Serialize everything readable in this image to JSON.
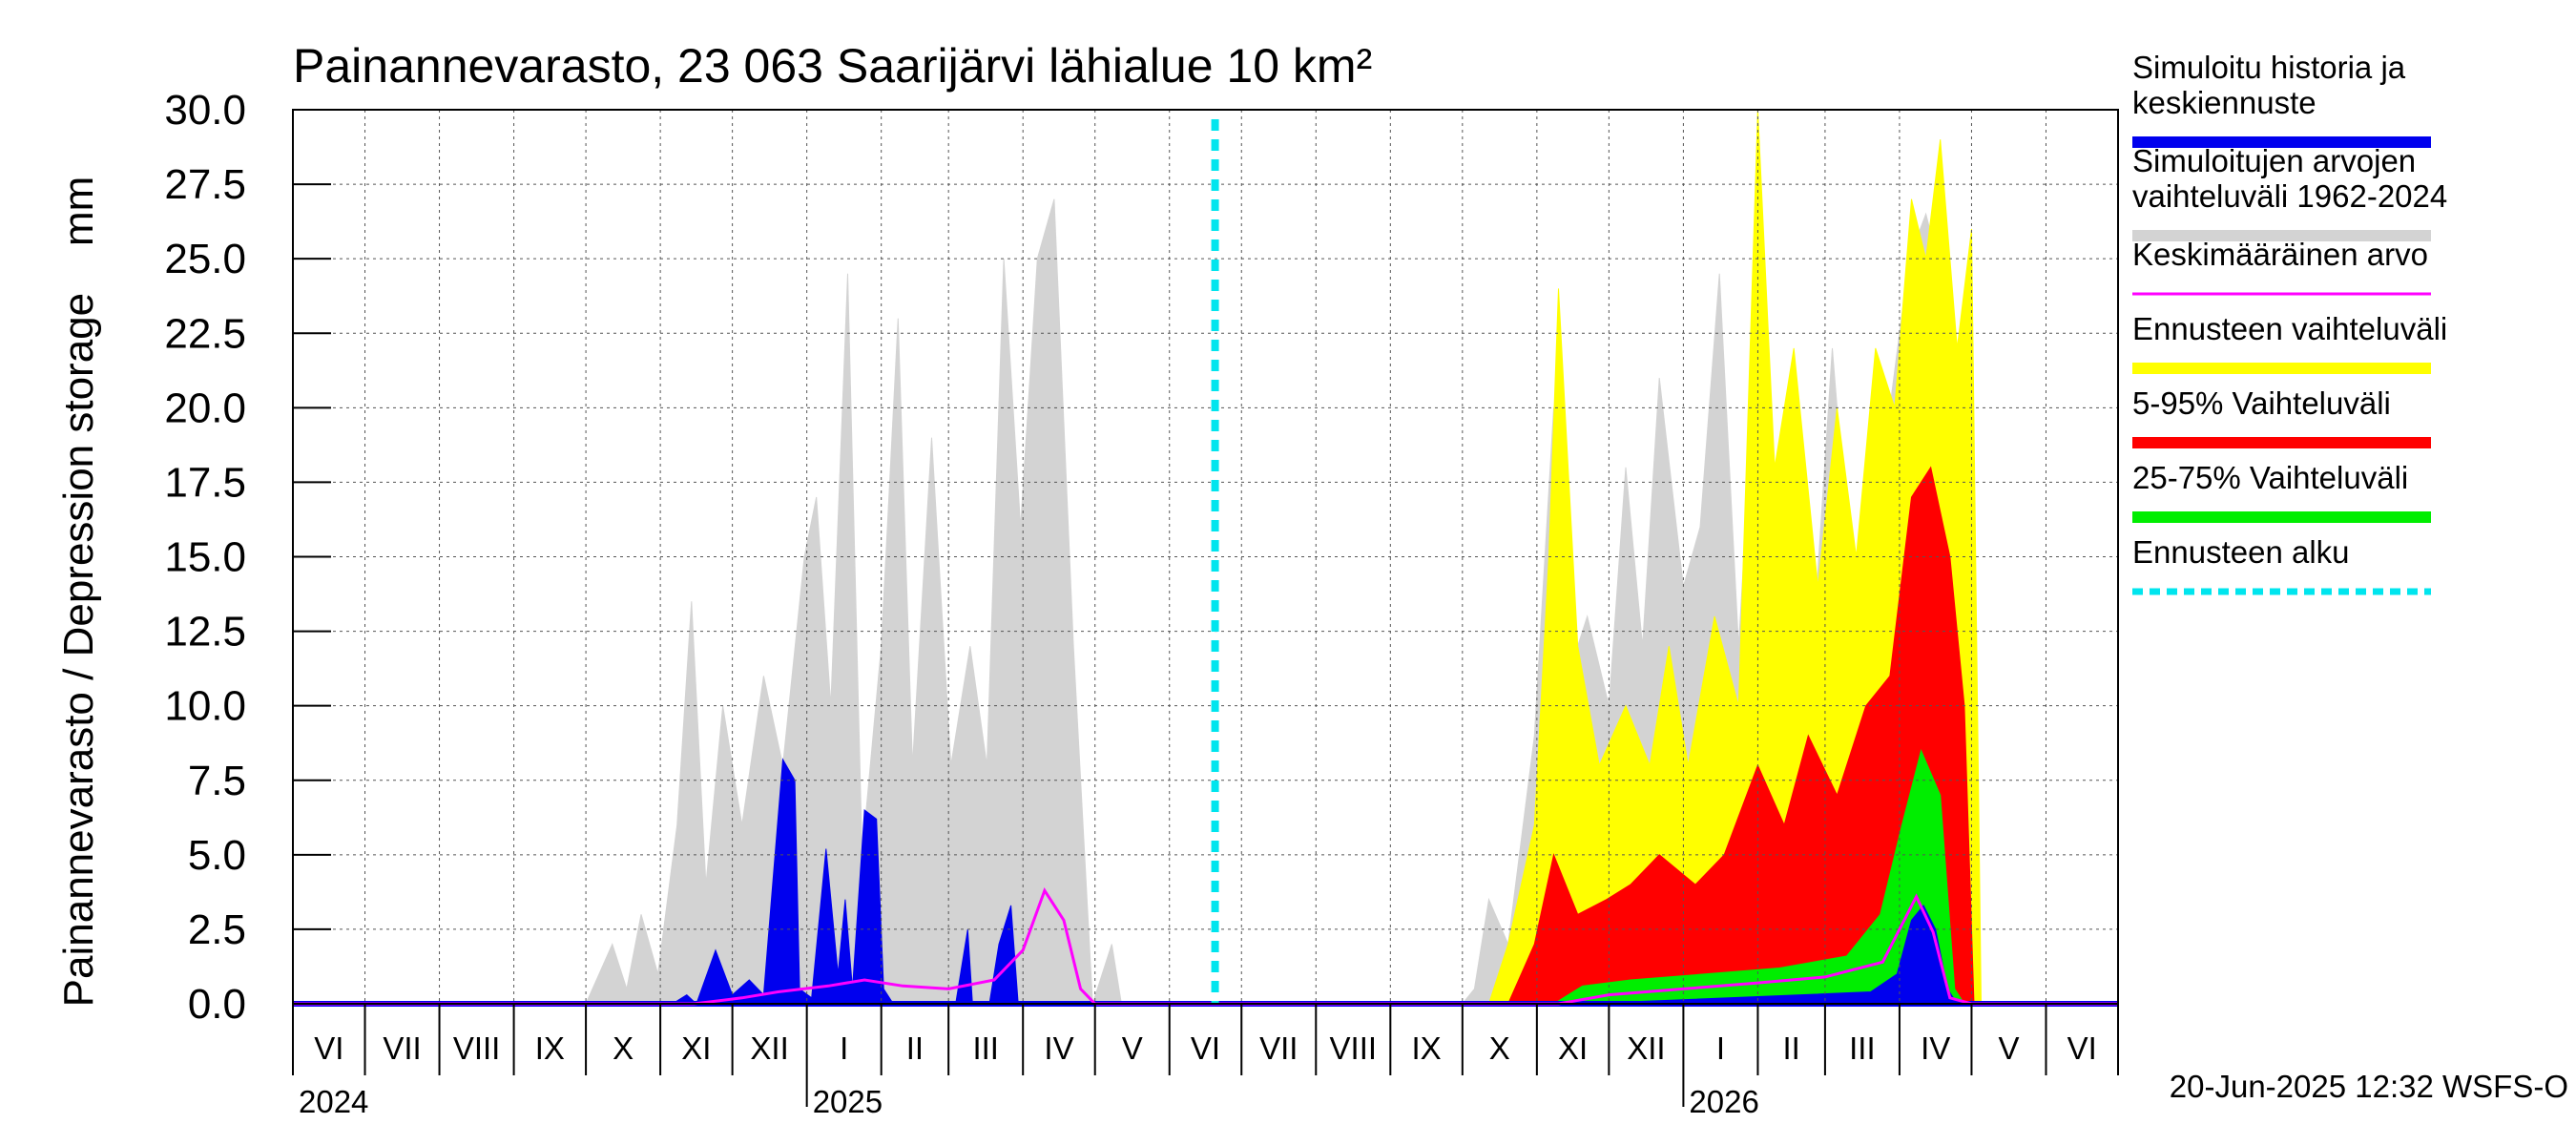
{
  "chart_data": {
    "type": "area",
    "title": "Painannevarasto, 23 063 Saarijärvi lähialue 10 km²",
    "ylabel": "Painannevarasto / Depression storage    mm",
    "ylim": [
      0,
      30
    ],
    "yticks": [
      "0.0",
      "2.5",
      "5.0",
      "7.5",
      "10.0",
      "12.5",
      "15.0",
      "17.5",
      "20.0",
      "22.5",
      "25.0",
      "27.5",
      "30.0"
    ],
    "grid": true,
    "legend_position": "right",
    "x_start": "2024-06-01",
    "x_end": "2026-07-01",
    "month_labels": [
      "VI",
      "VII",
      "VIII",
      "IX",
      "X",
      "XI",
      "XII",
      "I",
      "II",
      "III",
      "IV",
      "V",
      "VI",
      "VII",
      "VIII",
      "IX",
      "X",
      "XI",
      "XII",
      "I",
      "II",
      "III",
      "IV",
      "V",
      "VI"
    ],
    "year_labels": [
      "2024",
      "2025",
      "2026"
    ],
    "forecast_start": "2025-06-20",
    "footer": "20-Jun-2025 12:32 WSFS-O",
    "colors": {
      "history": "#0000ee",
      "range_1962_2024": "#d3d3d3",
      "mean": "#ff00ff",
      "forecast_range": "#ffff00",
      "p5_95": "#ff0000",
      "p25_75": "#00ee00",
      "forecast_start": "#00e5ee"
    },
    "legend": [
      {
        "key": "history",
        "lines": [
          "Simuloitu historia ja",
          "keskiennuste"
        ],
        "style": "thick"
      },
      {
        "key": "range_1962_2024",
        "lines": [
          "Simuloitujen arvojen",
          "vaihteluväli 1962-2024"
        ],
        "style": "thick"
      },
      {
        "key": "mean",
        "lines": [
          "Keskimääräinen arvo"
        ],
        "style": "thin"
      },
      {
        "key": "forecast_range",
        "lines": [
          "Ennusteen vaihteluväli"
        ],
        "style": "thick"
      },
      {
        "key": "p5_95",
        "lines": [
          "5-95% Vaihteluväli"
        ],
        "style": "thick"
      },
      {
        "key": "p25_75",
        "lines": [
          "25-75% Vaihteluväli"
        ],
        "style": "thick"
      },
      {
        "key": "forecast_start",
        "lines": [
          "Ennusteen alku"
        ],
        "style": "dotted"
      }
    ],
    "series": [
      {
        "key": "range_1962_2024",
        "name": "Simuloitujen arvojen vaihteluväli 1962-2024",
        "type": "area",
        "points": [
          [
            "2024-10-01",
            0
          ],
          [
            "2024-10-12",
            2
          ],
          [
            "2024-10-18",
            0.5
          ],
          [
            "2024-10-24",
            3
          ],
          [
            "2024-10-31",
            1
          ],
          [
            "2024-11-08",
            6
          ],
          [
            "2024-11-14",
            13.5
          ],
          [
            "2024-11-20",
            4
          ],
          [
            "2024-11-27",
            10
          ],
          [
            "2024-12-05",
            6
          ],
          [
            "2024-12-14",
            11
          ],
          [
            "2024-12-22",
            8
          ],
          [
            "2024-12-31",
            15
          ],
          [
            "2025-01-05",
            17
          ],
          [
            "2025-01-11",
            10
          ],
          [
            "2025-01-18",
            24.5
          ],
          [
            "2025-01-24",
            5
          ],
          [
            "2025-02-01",
            12
          ],
          [
            "2025-02-08",
            23
          ],
          [
            "2025-02-14",
            8
          ],
          [
            "2025-02-22",
            19
          ],
          [
            "2025-03-02",
            8
          ],
          [
            "2025-03-10",
            12
          ],
          [
            "2025-03-17",
            8
          ],
          [
            "2025-03-24",
            25
          ],
          [
            "2025-03-31",
            16
          ],
          [
            "2025-04-07",
            25
          ],
          [
            "2025-04-14",
            27
          ],
          [
            "2025-04-22",
            12
          ],
          [
            "2025-04-30",
            0
          ],
          [
            "2025-05-08",
            2
          ],
          [
            "2025-05-12",
            0
          ],
          [
            "2025-10-01",
            0
          ],
          [
            "2025-10-06",
            0.5
          ],
          [
            "2025-10-12",
            3.5
          ],
          [
            "2025-10-20",
            2
          ],
          [
            "2025-10-31",
            9
          ],
          [
            "2025-11-08",
            20
          ],
          [
            "2025-11-14",
            11
          ],
          [
            "2025-11-22",
            13
          ],
          [
            "2025-12-01",
            10
          ],
          [
            "2025-12-08",
            18
          ],
          [
            "2025-12-15",
            12
          ],
          [
            "2025-12-22",
            21
          ],
          [
            "2026-01-01",
            14
          ],
          [
            "2026-01-08",
            16
          ],
          [
            "2026-01-16",
            24.5
          ],
          [
            "2026-01-24",
            12
          ],
          [
            "2026-02-01",
            23
          ],
          [
            "2026-02-09",
            16
          ],
          [
            "2026-02-16",
            20
          ],
          [
            "2026-02-24",
            12
          ],
          [
            "2026-03-04",
            22
          ],
          [
            "2026-03-12",
            14
          ],
          [
            "2026-03-20",
            18
          ],
          [
            "2026-03-28",
            20
          ],
          [
            "2026-04-05",
            25
          ],
          [
            "2026-04-12",
            26.5
          ],
          [
            "2026-04-20",
            24
          ],
          [
            "2026-04-28",
            12
          ],
          [
            "2026-05-02",
            0
          ]
        ]
      },
      {
        "key": "forecast_range",
        "name": "Ennusteen vaihteluväli",
        "type": "area",
        "points": [
          [
            "2025-10-12",
            0
          ],
          [
            "2025-10-20",
            2
          ],
          [
            "2025-10-31",
            6
          ],
          [
            "2025-11-06",
            15
          ],
          [
            "2025-11-10",
            24
          ],
          [
            "2025-11-18",
            12
          ],
          [
            "2025-11-27",
            8
          ],
          [
            "2025-12-08",
            10
          ],
          [
            "2025-12-18",
            8
          ],
          [
            "2025-12-26",
            12
          ],
          [
            "2026-01-03",
            8
          ],
          [
            "2026-01-14",
            13
          ],
          [
            "2026-01-24",
            10
          ],
          [
            "2026-02-01",
            30
          ],
          [
            "2026-02-08",
            18
          ],
          [
            "2026-02-16",
            22
          ],
          [
            "2026-02-26",
            14
          ],
          [
            "2026-03-06",
            20
          ],
          [
            "2026-03-14",
            15
          ],
          [
            "2026-03-22",
            22
          ],
          [
            "2026-03-30",
            20
          ],
          [
            "2026-04-06",
            27
          ],
          [
            "2026-04-12",
            25
          ],
          [
            "2026-04-18",
            29
          ],
          [
            "2026-04-25",
            22
          ],
          [
            "2026-05-01",
            26
          ],
          [
            "2026-05-05",
            0
          ]
        ]
      },
      {
        "key": "p5_95",
        "name": "5-95% Vaihteluväli",
        "type": "area",
        "points": [
          [
            "2025-10-20",
            0
          ],
          [
            "2025-10-31",
            2
          ],
          [
            "2025-11-08",
            5
          ],
          [
            "2025-11-18",
            3
          ],
          [
            "2025-11-30",
            3.5
          ],
          [
            "2025-12-10",
            4
          ],
          [
            "2025-12-22",
            5
          ],
          [
            "2026-01-06",
            4
          ],
          [
            "2026-01-18",
            5
          ],
          [
            "2026-02-01",
            8
          ],
          [
            "2026-02-12",
            6
          ],
          [
            "2026-02-22",
            9
          ],
          [
            "2026-03-06",
            7
          ],
          [
            "2026-03-18",
            10
          ],
          [
            "2026-03-28",
            11
          ],
          [
            "2026-04-06",
            17
          ],
          [
            "2026-04-14",
            18
          ],
          [
            "2026-04-22",
            15
          ],
          [
            "2026-04-28",
            10
          ],
          [
            "2026-05-02",
            0
          ]
        ]
      },
      {
        "key": "p25_75",
        "name": "25-75% Vaihteluväli",
        "type": "area",
        "points": [
          [
            "2025-11-08",
            0
          ],
          [
            "2025-11-20",
            0.6
          ],
          [
            "2025-12-10",
            0.8
          ],
          [
            "2026-01-10",
            1
          ],
          [
            "2026-02-10",
            1.2
          ],
          [
            "2026-03-10",
            1.6
          ],
          [
            "2026-03-24",
            3
          ],
          [
            "2026-04-02",
            6
          ],
          [
            "2026-04-10",
            8.5
          ],
          [
            "2026-04-18",
            7
          ],
          [
            "2026-04-24",
            0.5
          ],
          [
            "2026-04-28",
            0
          ]
        ]
      },
      {
        "key": "history",
        "name": "Simuloitu historia ja keskiennuste",
        "type": "area",
        "points": [
          [
            "2024-11-06",
            0
          ],
          [
            "2024-11-12",
            0.3
          ],
          [
            "2024-11-16",
            0
          ],
          [
            "2024-11-24",
            1.8
          ],
          [
            "2024-12-01",
            0.3
          ],
          [
            "2024-12-08",
            0.8
          ],
          [
            "2024-12-14",
            0.3
          ],
          [
            "2024-12-22",
            8.2
          ],
          [
            "2024-12-27",
            7.5
          ],
          [
            "2024-12-29",
            0.5
          ],
          [
            "2025-01-03",
            0.2
          ],
          [
            "2025-01-09",
            5.2
          ],
          [
            "2025-01-14",
            1
          ],
          [
            "2025-01-17",
            3.5
          ],
          [
            "2025-01-20",
            0.5
          ],
          [
            "2025-01-25",
            6.5
          ],
          [
            "2025-01-30",
            6.2
          ],
          [
            "2025-02-02",
            0.5
          ],
          [
            "2025-02-06",
            0
          ],
          [
            "2025-03-04",
            0
          ],
          [
            "2025-03-09",
            2.5
          ],
          [
            "2025-03-11",
            0
          ],
          [
            "2025-03-18",
            0
          ],
          [
            "2025-03-22",
            2
          ],
          [
            "2025-03-27",
            3.3
          ],
          [
            "2025-03-30",
            0
          ],
          [
            "2025-06-20",
            0
          ],
          [
            "2025-11-20",
            0
          ],
          [
            "2026-01-20",
            0.2
          ],
          [
            "2026-03-20",
            0.4
          ],
          [
            "2026-03-31",
            1
          ],
          [
            "2026-04-06",
            2.8
          ],
          [
            "2026-04-11",
            3.3
          ],
          [
            "2026-04-16",
            2.5
          ],
          [
            "2026-04-21",
            0.5
          ],
          [
            "2026-04-25",
            0
          ]
        ]
      },
      {
        "key": "mean",
        "name": "Keskimääräinen arvo",
        "type": "line",
        "points": [
          [
            "2024-06-01",
            0
          ],
          [
            "2024-11-15",
            0
          ],
          [
            "2024-12-05",
            0.2
          ],
          [
            "2024-12-20",
            0.4
          ],
          [
            "2025-01-10",
            0.6
          ],
          [
            "2025-01-25",
            0.8
          ],
          [
            "2025-02-10",
            0.6
          ],
          [
            "2025-03-01",
            0.5
          ],
          [
            "2025-03-20",
            0.8
          ],
          [
            "2025-04-01",
            1.8
          ],
          [
            "2025-04-10",
            3.8
          ],
          [
            "2025-04-18",
            2.8
          ],
          [
            "2025-04-25",
            0.5
          ],
          [
            "2025-05-01",
            0
          ],
          [
            "2025-11-10",
            0
          ],
          [
            "2025-12-01",
            0.3
          ],
          [
            "2026-01-01",
            0.5
          ],
          [
            "2026-02-01",
            0.7
          ],
          [
            "2026-03-01",
            0.9
          ],
          [
            "2026-03-25",
            1.4
          ],
          [
            "2026-04-08",
            3.6
          ],
          [
            "2026-04-15",
            2.4
          ],
          [
            "2026-04-22",
            0.2
          ],
          [
            "2026-05-01",
            0
          ],
          [
            "2026-07-01",
            0
          ]
        ]
      }
    ]
  }
}
